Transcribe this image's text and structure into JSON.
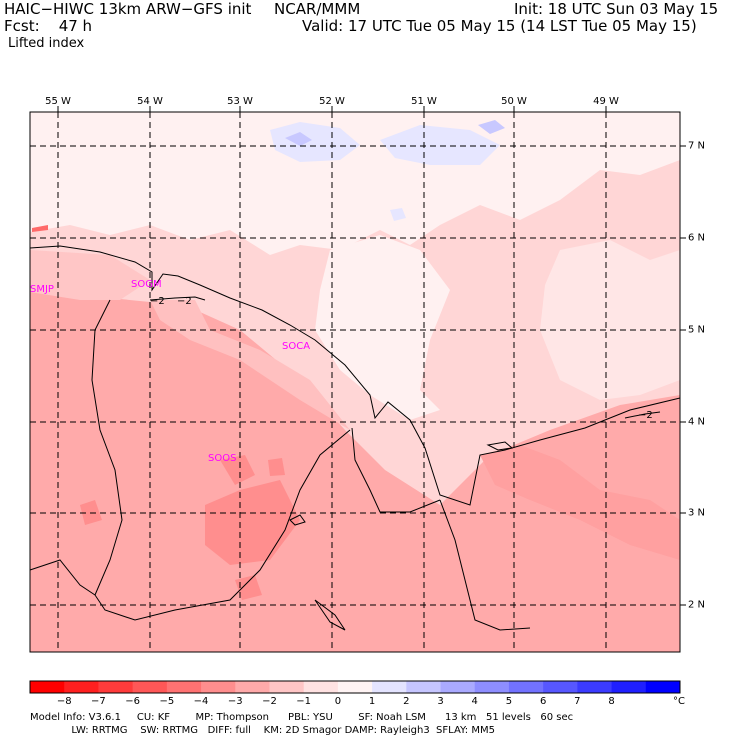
{
  "header": {
    "model": "HAIC−HIWC 13km ARW−GFS init",
    "org": "NCAR/MMM",
    "init": "Init: 18 UTC Sun 03 May 15",
    "fcst": "Fcst:    47 h",
    "valid": "Valid: 17 UTC Tue 05 May 15 (14 LST Tue 05 May 15)",
    "field": "Lifted index"
  },
  "map": {
    "lon_labels": [
      "55 W",
      "54 W",
      "53 W",
      "52 W",
      "51 W",
      "50 W",
      "49 W"
    ],
    "lat_labels": [
      "7 N",
      "6 N",
      "5 N",
      "4 N",
      "3 N",
      "2 N"
    ],
    "stations": [
      "SMJP",
      "SOGM",
      "SOCA",
      "SOOS"
    ],
    "contour_labels": [
      "−2",
      "−2",
      "−2"
    ]
  },
  "colorbar": {
    "unit": "°C",
    "labels": [
      "−8",
      "−7",
      "−6",
      "−5",
      "−4",
      "−3",
      "−2",
      "−1",
      "0",
      "1",
      "2",
      "3",
      "4",
      "5",
      "6",
      "7",
      "8"
    ],
    "colors": [
      "#ff0000",
      "#ff1f1f",
      "#ff3b3b",
      "#ff5757",
      "#ff7272",
      "#ff8e8e",
      "#ffaaaa",
      "#ffc6c6",
      "#ffe2e2",
      "#fff4f4",
      "#e4e4ff",
      "#c6c6ff",
      "#aaaaff",
      "#8e8eff",
      "#7272ff",
      "#5757ff",
      "#3b3bff",
      "#1f1fff",
      "#0000ff"
    ]
  },
  "footer": {
    "line1": "Model Info: V3.6.1     CU: KF        MP: Thompson      PBL: YSU        SF: Noah LSM      13 km   51 levels   60 sec",
    "line2": "             LW: RRTMG    SW: RRTMG   DIFF: full    KM: 2D Smagor DAMP: Rayleigh3  SFLAY: MM5"
  }
}
